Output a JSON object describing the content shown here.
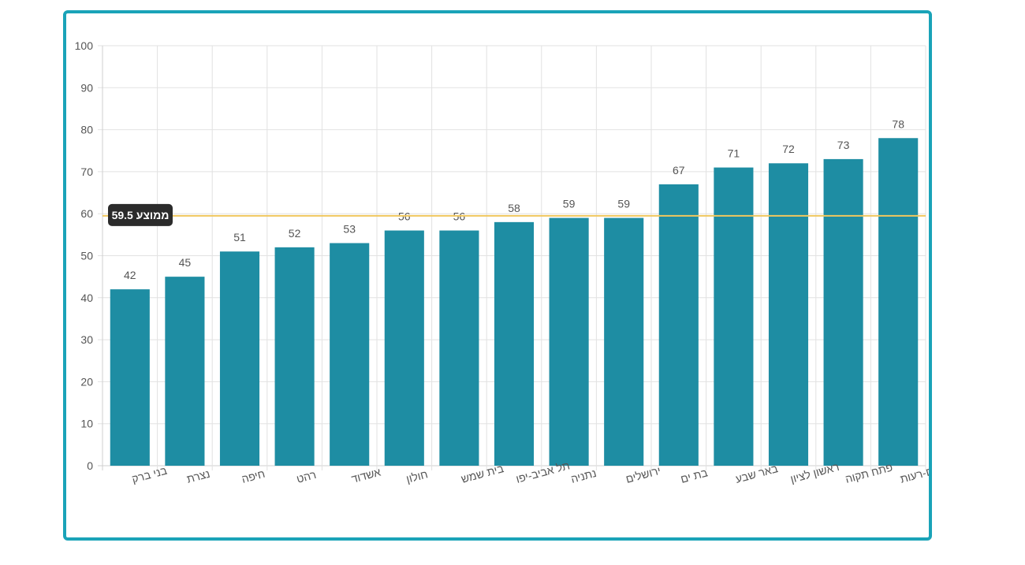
{
  "colors": {
    "bar": "#1e8da3",
    "frame": "#1aa3b8",
    "average_line": "#f0c75e",
    "average_label_bg": "#2b2b2b"
  },
  "chart_data": {
    "type": "bar",
    "categories": [
      "בני ברק",
      "נצרת",
      "חיפה",
      "רהט",
      "אשדוד",
      "חולון",
      "בית שמש",
      "תל אביב-יפו",
      "נתניה",
      "ירושלים",
      "בת ים",
      "באר שבע",
      "ראשון לציון",
      "פתח תקוה",
      "מודיעין-מכבים-רעות"
    ],
    "values": [
      42,
      45,
      51,
      52,
      53,
      56,
      56,
      58,
      59,
      59,
      67,
      71,
      72,
      73,
      78
    ],
    "ylim": [
      0,
      100
    ],
    "yticks": [
      0,
      10,
      20,
      30,
      40,
      50,
      60,
      70,
      80,
      90,
      100
    ],
    "grid": true,
    "average": {
      "value": 59.5,
      "label": "ממוצע 59.5"
    }
  }
}
